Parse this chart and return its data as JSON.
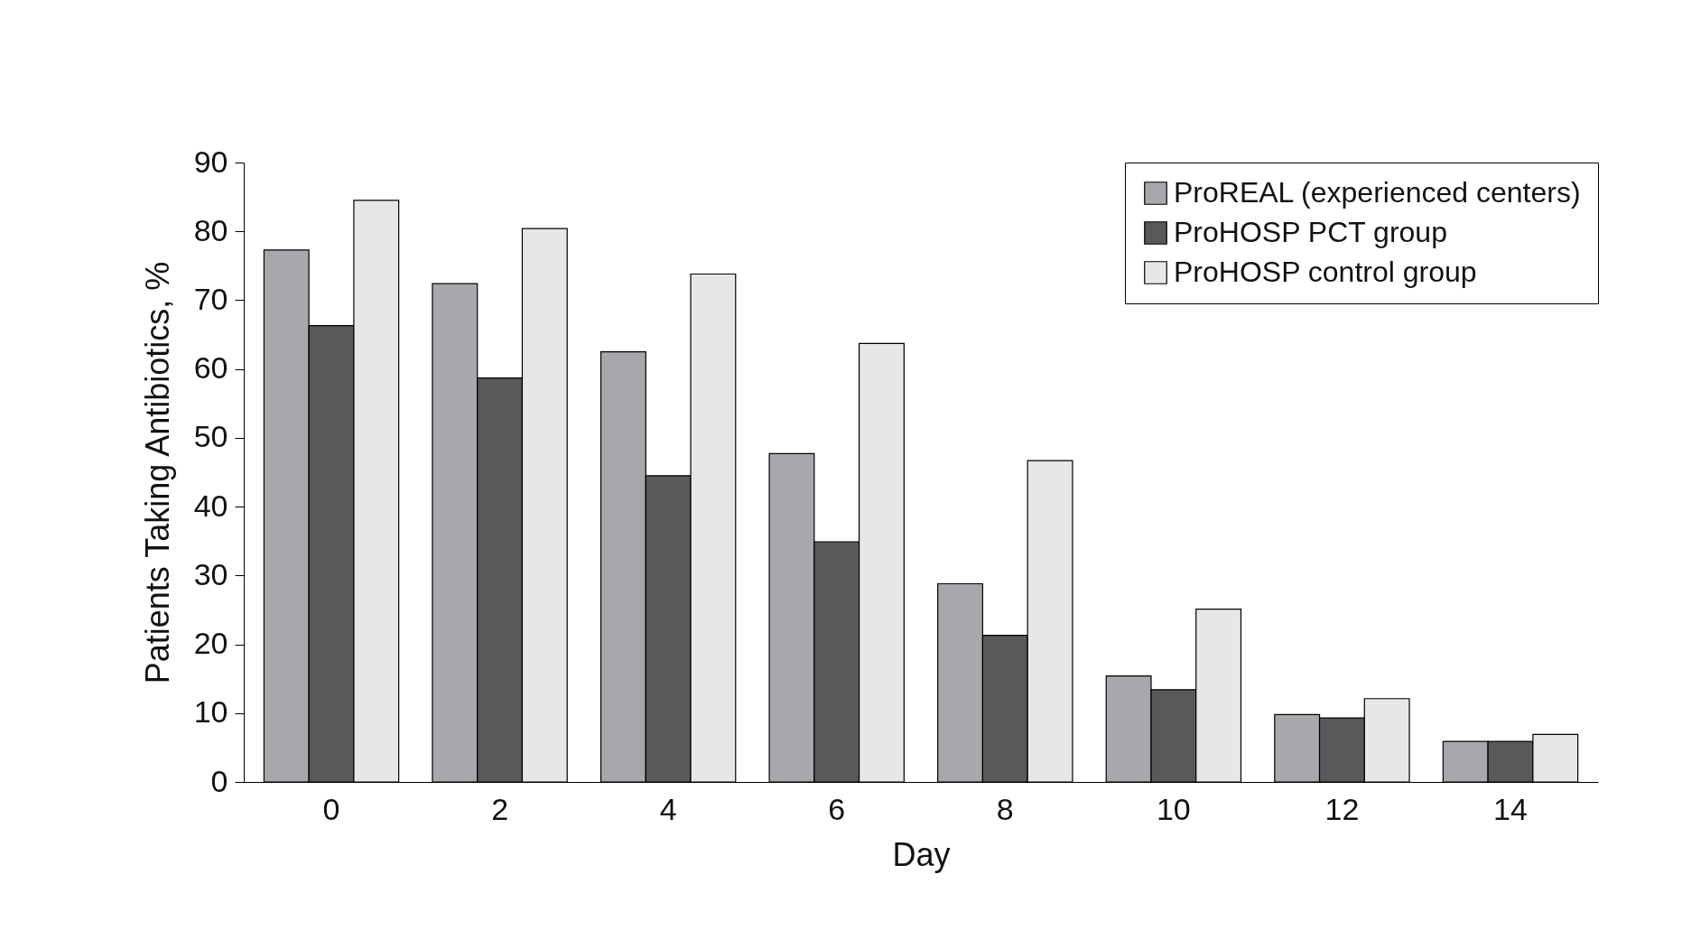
{
  "chart_data": {
    "type": "bar",
    "xlabel": "Day",
    "ylabel": "Patients Taking Antibiotics, %",
    "categories": [
      "0",
      "2",
      "4",
      "6",
      "8",
      "10",
      "12",
      "14"
    ],
    "series": [
      {
        "name": "ProREAL (experienced centers)",
        "color": "#a7a8ab",
        "values": [
          77.3,
          72.4,
          62.5,
          47.7,
          28.8,
          15.4,
          9.8,
          5.9
        ]
      },
      {
        "name": "ProHOSP PCT group",
        "color": "#58595b",
        "values": [
          66.3,
          58.7,
          44.5,
          34.9,
          21.3,
          13.4,
          9.3,
          5.9
        ]
      },
      {
        "name": "ProHOSP control group",
        "color": "#e6e7e8",
        "values": [
          84.5,
          80.4,
          73.8,
          63.7,
          46.7,
          25.1,
          12.1,
          6.9
        ]
      }
    ],
    "ylim": [
      0,
      90
    ],
    "yticks": [
      0,
      10,
      20,
      30,
      40,
      50,
      60,
      70,
      80,
      90
    ],
    "grid": false,
    "legend": "top right"
  }
}
